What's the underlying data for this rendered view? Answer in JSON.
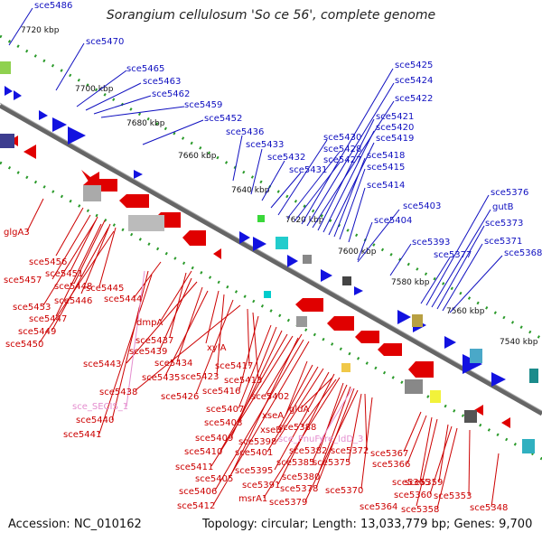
{
  "title": "Sorangium cellulosum 'So ce 56', complete genome",
  "footer": {
    "accession": "Accession: NC_010162",
    "summary": "Topology: circular; Length: 13,033,779 bp; Genes: 9,700"
  },
  "colors": {
    "forward_gene": "#1212e0",
    "reverse_gene": "#e00000",
    "backbone": "#777777",
    "dots": "#2a9a2a",
    "label_forward": "#1010c0",
    "label_reverse": "#cc0000",
    "label_rna": "#e48ecf"
  },
  "ticks": [
    "7720 kbp",
    "7700 kbp",
    "7680 kbp",
    "7660 kbp",
    "7640 kbp",
    "7620 kbp",
    "7600 kbp",
    "7580 kbp",
    "7560 kbp",
    "7540 kbp"
  ],
  "forward_labels": [
    "sce5486",
    "sce5470",
    "sce5465",
    "sce5463",
    "sce5462",
    "sce5459",
    "sce5452",
    "sce5436",
    "sce5433",
    "sce5432",
    "sce5431",
    "sce5430",
    "sce5428",
    "sce5427",
    "sce5425",
    "sce5424",
    "sce5422",
    "sce5421",
    "sce5420",
    "sce5419",
    "sce5418",
    "sce5415",
    "sce5414",
    "sce5403",
    "sce5404",
    "sce5393",
    "sce5377",
    "sce5376",
    "gutB",
    "sce5373",
    "sce5371",
    "sce5368"
  ],
  "reverse_labels": [
    "glgA3",
    "sce5456",
    "sce5457",
    "sce5451",
    "sce5448",
    "sce5446",
    "sce5445",
    "sce5444",
    "sce5453",
    "sce5447",
    "sce5449",
    "sce5450",
    "dmpA",
    "sce5437",
    "sce5439",
    "sce5443",
    "sce5434",
    "sce5435",
    "xylA",
    "sce5423",
    "sce5426",
    "sce5438",
    "sce5417",
    "sce5413",
    "sce5416",
    "sce5402",
    "sce5407",
    "sce5408",
    "sce5409",
    "sce5410",
    "sce5411",
    "sce5405",
    "sce5406",
    "sce5412",
    "xseA",
    "xseB",
    "sce5401",
    "sce5398",
    "sce5395",
    "sce5391",
    "msrA1",
    "gldA",
    "sce5388",
    "sce5382",
    "sce5385",
    "sce5380",
    "sce5378",
    "sce5379",
    "sce5372",
    "sce5375",
    "sce5370",
    "sce5367",
    "sce5366",
    "sce5365",
    "sce5364",
    "sce5359",
    "sce5360",
    "sce5358",
    "sce5353",
    "sce5348",
    "sce5440",
    "sce5441"
  ],
  "rna_labels": [
    "sce_SECIS_1",
    "sce_PnuFyre_ldD_3"
  ]
}
